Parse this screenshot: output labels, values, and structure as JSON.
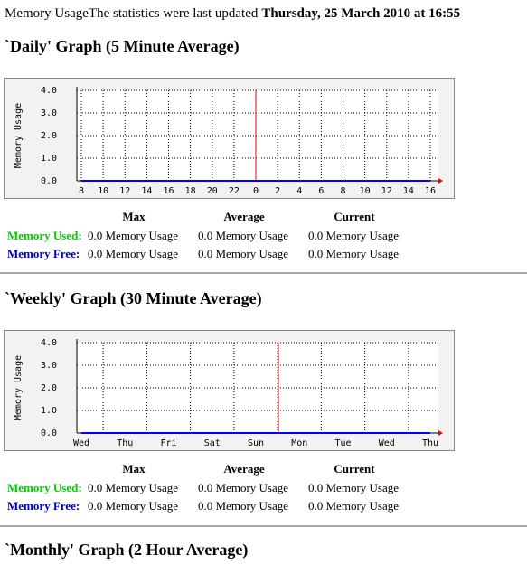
{
  "header": {
    "prefix": "Memory Usage",
    "text": "The statistics were last updated",
    "date": "Thursday, 25 March 2010 at 16:55"
  },
  "chart_data": [
    {
      "type": "line",
      "title": "`Daily' Graph (5 Minute Average)",
      "ylabel": "Memory Usage",
      "categories": [
        "8",
        "10",
        "12",
        "14",
        "16",
        "18",
        "20",
        "22",
        "0",
        "2",
        "4",
        "6",
        "8",
        "10",
        "12",
        "14",
        "16"
      ],
      "series": [
        {
          "color": "#00cc00",
          "values": [
            0,
            0,
            0,
            0,
            0,
            0,
            0,
            0,
            0,
            0,
            0,
            0,
            0,
            0,
            0,
            0,
            0
          ]
        },
        {
          "color": "#0000ff",
          "values": [
            0,
            0,
            0,
            0,
            0,
            0,
            0,
            0,
            0,
            0,
            0,
            0,
            0,
            0,
            0,
            0,
            0
          ]
        }
      ],
      "ylim": [
        0,
        4
      ],
      "yticks": [
        {
          "value": 0,
          "label": "0.0"
        },
        {
          "value": 1,
          "label": "1.0"
        },
        {
          "value": 2,
          "label": "2.0"
        },
        {
          "value": 3,
          "label": "3.0"
        },
        {
          "value": 4,
          "label": "4.0"
        }
      ],
      "grid": true
    },
    {
      "type": "line",
      "title": "`Weekly' Graph (30 Minute Average)",
      "ylabel": "Memory Usage",
      "categories": [
        "Wed",
        "Thu",
        "Fri",
        "Sat",
        "Sun",
        "Mon",
        "Tue",
        "Wed",
        "Thu"
      ],
      "series": [
        {
          "color": "#00cc00",
          "values": [
            0,
            0,
            0,
            0,
            0,
            0,
            0,
            0,
            0
          ]
        },
        {
          "color": "#0000ff",
          "values": [
            0,
            0,
            0,
            0,
            0,
            0,
            0,
            0,
            0
          ]
        }
      ],
      "ylim": [
        0,
        4
      ],
      "yticks": [
        {
          "value": 0,
          "label": "0.0"
        },
        {
          "value": 1,
          "label": "1.0"
        },
        {
          "value": 2,
          "label": "2.0"
        },
        {
          "value": 3,
          "label": "3.0"
        },
        {
          "value": 4,
          "label": "4.0"
        }
      ],
      "grid": true
    }
  ],
  "tables": [
    {
      "columns": [
        "Max",
        "Average",
        "Current"
      ],
      "rows": [
        {
          "label": "Memory Used:",
          "color": "#00cc00",
          "cells": [
            "0.0 Memory Usage",
            "0.0 Memory Usage",
            "0.0 Memory Usage"
          ]
        },
        {
          "label": "Memory Free:",
          "color": "#0000cc",
          "cells": [
            "0.0 Memory Usage",
            "0.0 Memory Usage",
            "0.0 Memory Usage"
          ]
        }
      ]
    },
    {
      "columns": [
        "Max",
        "Average",
        "Current"
      ],
      "rows": [
        {
          "label": "Memory Used:",
          "color": "#00cc00",
          "cells": [
            "0.0 Memory Usage",
            "0.0 Memory Usage",
            "0.0 Memory Usage"
          ]
        },
        {
          "label": "Memory Free:",
          "color": "#0000cc",
          "cells": [
            "0.0 Memory Usage",
            "0.0 Memory Usage",
            "0.0 Memory Usage"
          ]
        }
      ]
    }
  ],
  "monthly": {
    "title": "`Monthly' Graph (2 Hour Average)"
  }
}
